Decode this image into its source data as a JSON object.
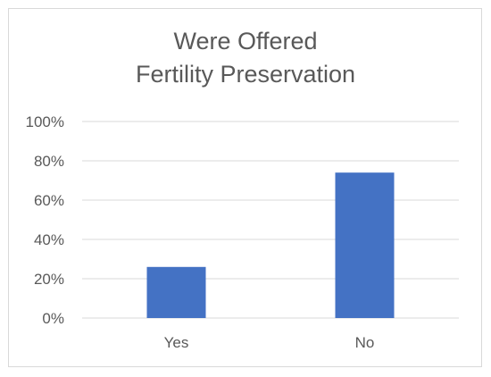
{
  "chart_data": {
    "type": "bar",
    "title": "Were Offered Fertility Preservation",
    "title_lines": [
      "Were Offered",
      "Fertility Preservation"
    ],
    "categories": [
      "Yes",
      "No"
    ],
    "values": [
      26,
      74
    ],
    "value_unit": "%",
    "ylim": [
      0,
      100
    ],
    "yticks": [
      0,
      20,
      40,
      60,
      80,
      100
    ],
    "ytick_labels": [
      "0%",
      "20%",
      "40%",
      "60%",
      "80%",
      "100%"
    ],
    "xlabel": "",
    "ylabel": "",
    "grid": true,
    "legend": "none",
    "bar_color": "#4472c4",
    "grid_color": "#d9d9d9",
    "text_color": "#595959"
  }
}
